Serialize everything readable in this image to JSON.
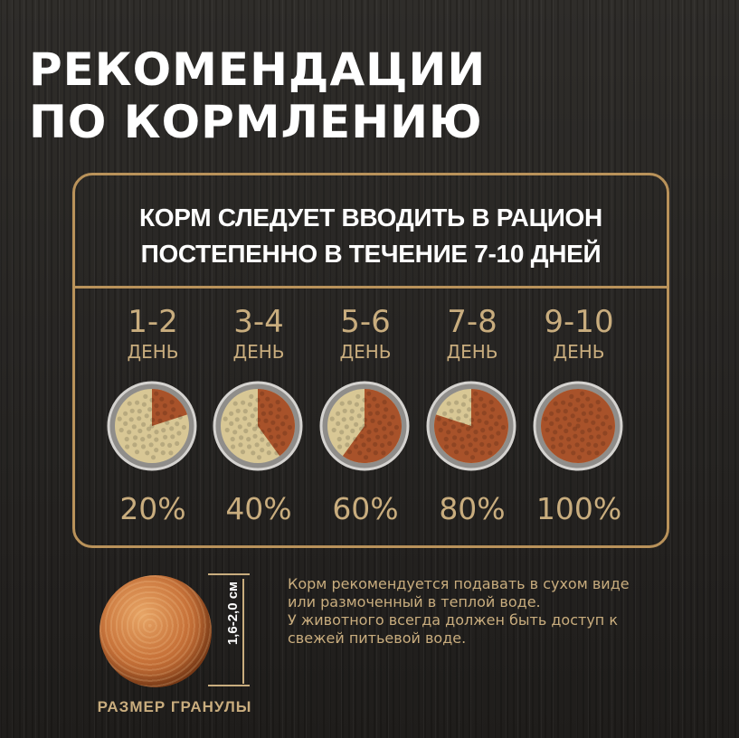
{
  "title": {
    "line1": "РЕКОМЕНДАЦИИ",
    "line2": "ПО КОРМЛЕНИЮ"
  },
  "intro": {
    "line1": "КОРМ СЛЕДУЕТ ВВОДИТЬ В РАЦИОН",
    "line2": "ПОСТЕПЕННО В ТЕЧЕНИЕ 7-10 ДНЕЙ"
  },
  "schedule": [
    {
      "days": "1-2",
      "label": "ДЕНЬ",
      "percent_text": "20%",
      "new_food_fraction": 0.2
    },
    {
      "days": "3-4",
      "label": "ДЕНЬ",
      "percent_text": "40%",
      "new_food_fraction": 0.4
    },
    {
      "days": "5-6",
      "label": "ДЕНЬ",
      "percent_text": "60%",
      "new_food_fraction": 0.6
    },
    {
      "days": "7-8",
      "label": "ДЕНЬ",
      "percent_text": "80%",
      "new_food_fraction": 0.8
    },
    {
      "days": "9-10",
      "label": "ДЕНЬ",
      "percent_text": "100%",
      "new_food_fraction": 1.0
    }
  ],
  "granule": {
    "size": "1,6-2,0 см",
    "caption": "РАЗМЕР ГРАНУЛЫ"
  },
  "note": {
    "line1": "Корм рекомендуется подавать в сухом виде",
    "line2": "или размоченный в теплой воде.",
    "line3": "У животного всегда должен быть доступ к",
    "line4": "свежей питьевой воде."
  },
  "colors": {
    "gold": "#b9925a",
    "gold_text": "#c9ad7e",
    "new_food": "#a8522a",
    "old_food": "#d8c795",
    "background": "#2a2826"
  }
}
